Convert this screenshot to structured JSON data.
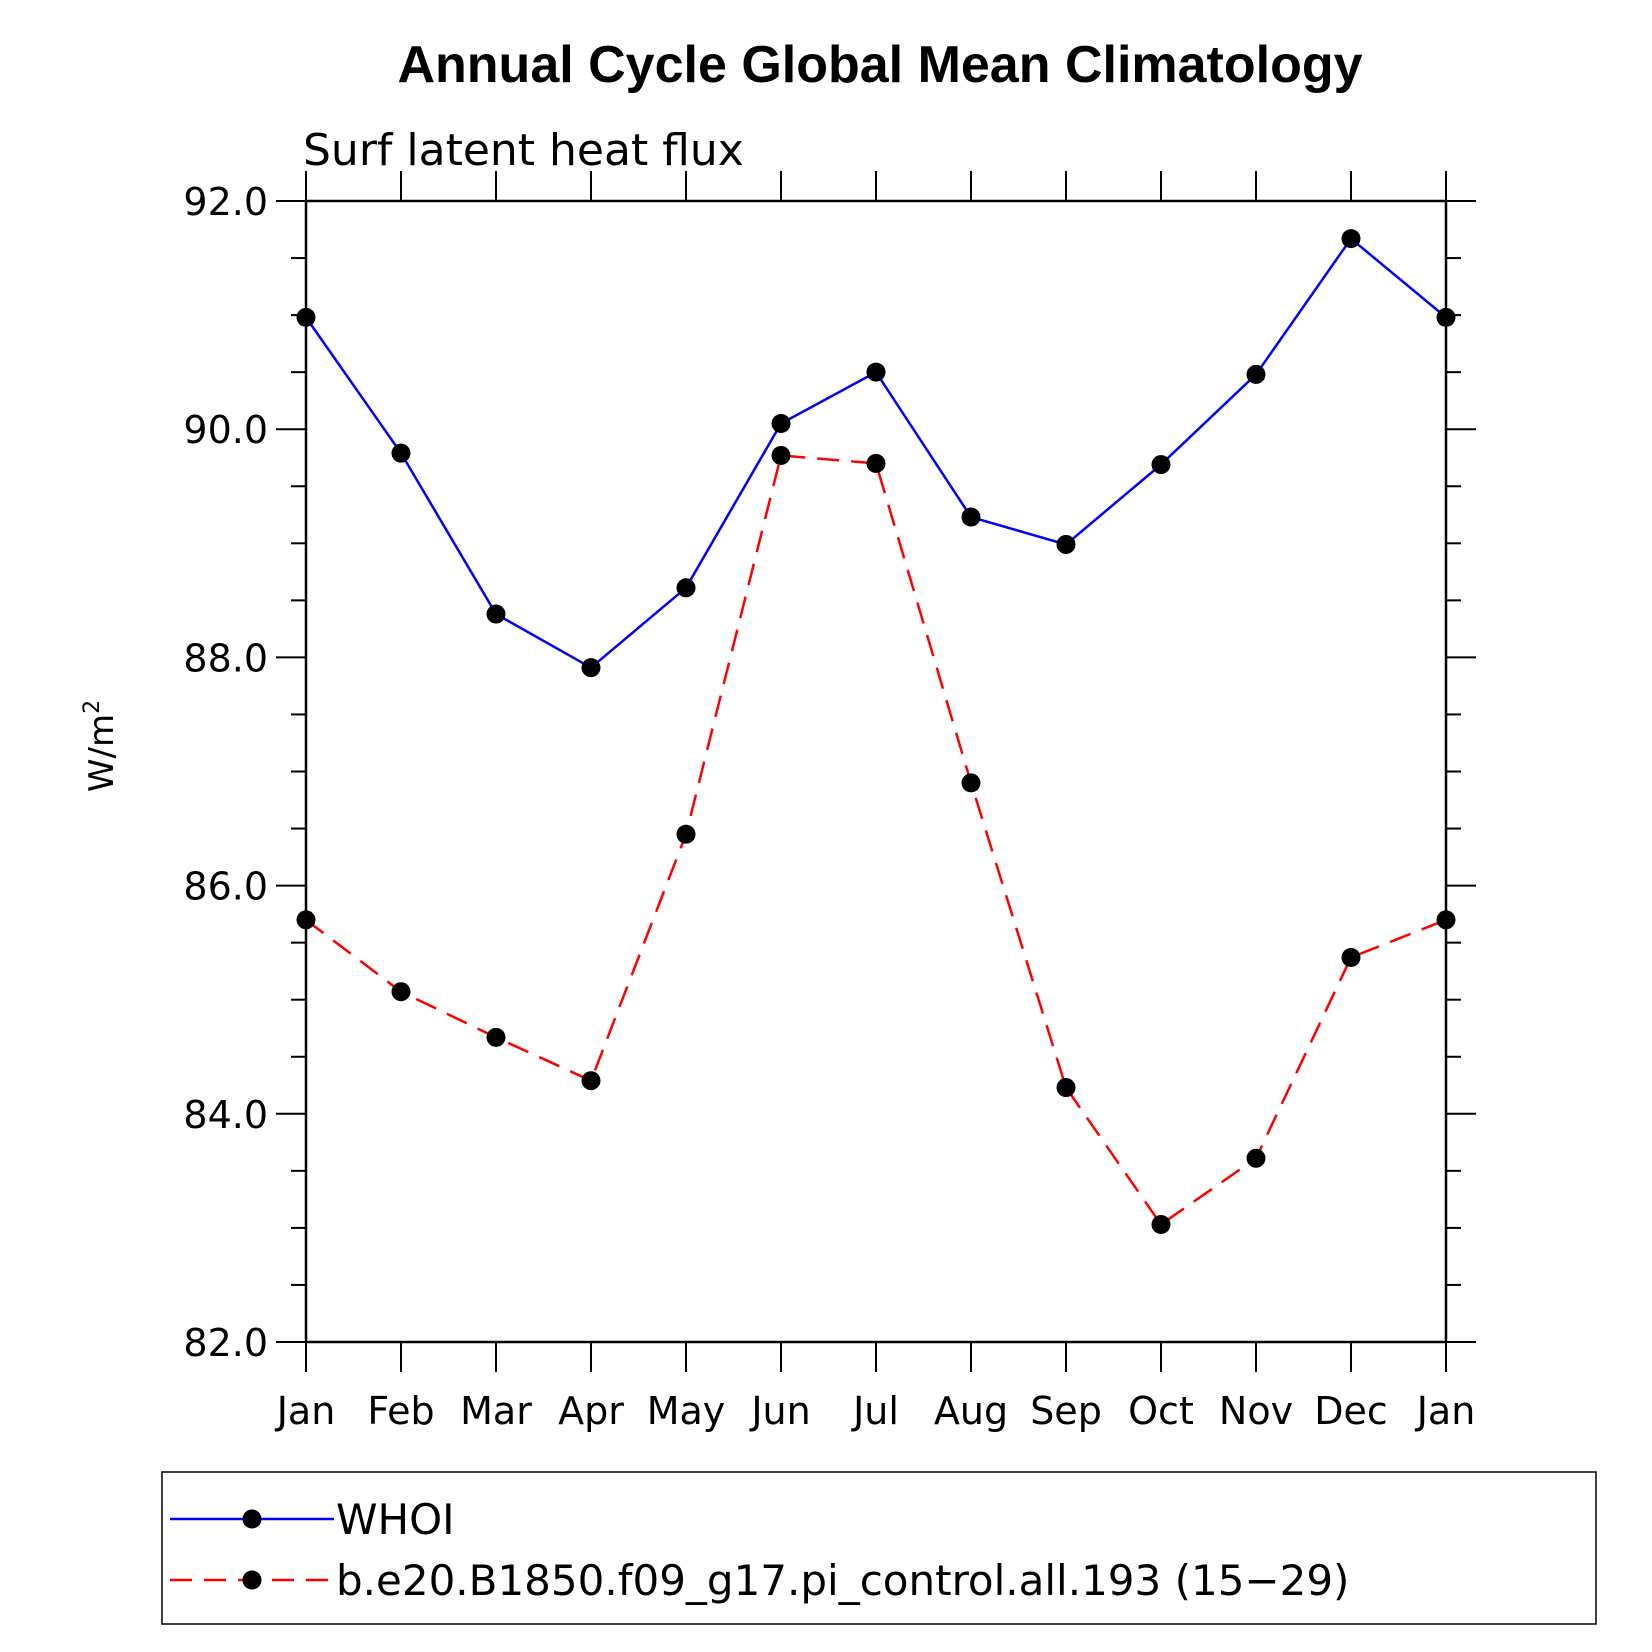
{
  "chart_data": {
    "type": "line",
    "title": "Annual Cycle Global Mean Climatology",
    "subtitle": "Surf latent heat flux",
    "ylabel": "W/m",
    "ylabel_sup": "2",
    "xlabel": "",
    "categories": [
      "Jan",
      "Feb",
      "Mar",
      "Apr",
      "May",
      "Jun",
      "Jul",
      "Aug",
      "Sep",
      "Oct",
      "Nov",
      "Dec",
      "Jan"
    ],
    "ylim": [
      82.0,
      92.0
    ],
    "yticks": [
      "82.0",
      "84.0",
      "86.0",
      "88.0",
      "90.0",
      "92.0"
    ],
    "grid": false,
    "legend_position": "bottom",
    "series": [
      {
        "name": "WHOI",
        "color": "#0000ff",
        "style": "solid",
        "values": [
          90.98,
          89.79,
          88.38,
          87.91,
          88.61,
          90.05,
          90.5,
          89.23,
          88.99,
          89.69,
          90.48,
          91.67,
          90.98
        ]
      },
      {
        "name": "b.e20.B1850.f09_g17.pi_control.all.193 (15−29)",
        "color": "#ff0000",
        "style": "dashed",
        "values": [
          85.7,
          85.07,
          84.67,
          84.29,
          86.45,
          89.77,
          89.7,
          86.9,
          84.23,
          83.03,
          83.61,
          85.37,
          85.7
        ]
      }
    ]
  }
}
